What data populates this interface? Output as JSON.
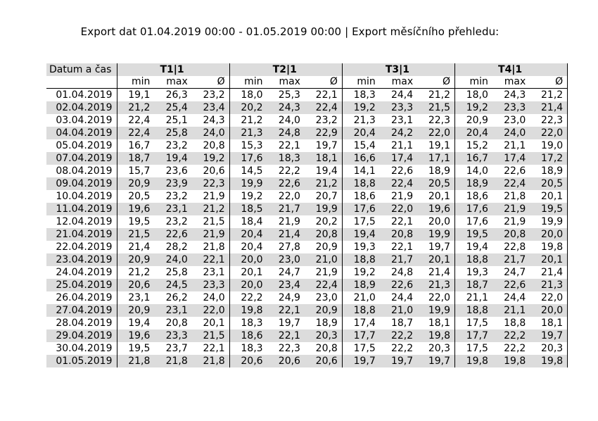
{
  "header": {
    "title": "Export dat 01.04.2019 00:00 - 01.05.2019 00:00 | Export měsíčního přehledu:"
  },
  "table": {
    "label": "Datum a čas",
    "groups": [
      "T1|1",
      "T2|1",
      "T3|1",
      "T4|1"
    ],
    "subheaders": [
      "min",
      "max",
      "Ø"
    ],
    "rows": [
      [
        "01.04.2019",
        "19,1",
        "26,3",
        "23,2",
        "18,0",
        "25,3",
        "22,1",
        "18,3",
        "24,4",
        "21,2",
        "18,0",
        "24,3",
        "21,2"
      ],
      [
        "02.04.2019",
        "21,2",
        "25,4",
        "23,4",
        "20,2",
        "24,3",
        "22,4",
        "19,2",
        "23,3",
        "21,5",
        "19,2",
        "23,3",
        "21,4"
      ],
      [
        "03.04.2019",
        "22,4",
        "25,1",
        "24,3",
        "21,2",
        "24,0",
        "23,2",
        "21,3",
        "23,1",
        "22,3",
        "20,9",
        "23,0",
        "22,3"
      ],
      [
        "04.04.2019",
        "22,4",
        "25,8",
        "24,0",
        "21,3",
        "24,8",
        "22,9",
        "20,4",
        "24,2",
        "22,0",
        "20,4",
        "24,0",
        "22,0"
      ],
      [
        "05.04.2019",
        "16,7",
        "23,2",
        "20,8",
        "15,3",
        "22,1",
        "19,7",
        "15,4",
        "21,1",
        "19,1",
        "15,2",
        "21,1",
        "19,0"
      ],
      [
        "07.04.2019",
        "18,7",
        "19,4",
        "19,2",
        "17,6",
        "18,3",
        "18,1",
        "16,6",
        "17,4",
        "17,1",
        "16,7",
        "17,4",
        "17,2"
      ],
      [
        "08.04.2019",
        "15,7",
        "23,6",
        "20,6",
        "14,5",
        "22,2",
        "19,4",
        "14,1",
        "22,6",
        "18,9",
        "14,0",
        "22,6",
        "18,9"
      ],
      [
        "09.04.2019",
        "20,9",
        "23,9",
        "22,3",
        "19,9",
        "22,6",
        "21,2",
        "18,8",
        "22,4",
        "20,5",
        "18,9",
        "22,4",
        "20,5"
      ],
      [
        "10.04.2019",
        "20,5",
        "23,2",
        "21,9",
        "19,2",
        "22,0",
        "20,7",
        "18,6",
        "21,9",
        "20,1",
        "18,6",
        "21,8",
        "20,1"
      ],
      [
        "11.04.2019",
        "19,6",
        "23,1",
        "21,2",
        "18,5",
        "21,7",
        "19,9",
        "17,6",
        "22,0",
        "19,6",
        "17,6",
        "21,9",
        "19,5"
      ],
      [
        "12.04.2019",
        "19,5",
        "23,2",
        "21,5",
        "18,4",
        "21,9",
        "20,2",
        "17,5",
        "22,1",
        "20,0",
        "17,6",
        "21,9",
        "19,9"
      ],
      [
        "21.04.2019",
        "21,5",
        "22,6",
        "21,9",
        "20,4",
        "21,4",
        "20,8",
        "19,4",
        "20,8",
        "19,9",
        "19,5",
        "20,8",
        "20,0"
      ],
      [
        "22.04.2019",
        "21,4",
        "28,2",
        "21,8",
        "20,4",
        "27,8",
        "20,9",
        "19,3",
        "22,1",
        "19,7",
        "19,4",
        "22,8",
        "19,8"
      ],
      [
        "23.04.2019",
        "20,9",
        "24,0",
        "22,1",
        "20,0",
        "23,0",
        "21,0",
        "18,8",
        "21,7",
        "20,1",
        "18,8",
        "21,7",
        "20,1"
      ],
      [
        "24.04.2019",
        "21,2",
        "25,8",
        "23,1",
        "20,1",
        "24,7",
        "21,9",
        "19,2",
        "24,8",
        "21,4",
        "19,3",
        "24,7",
        "21,4"
      ],
      [
        "25.04.2019",
        "20,6",
        "24,5",
        "23,3",
        "20,0",
        "23,4",
        "22,4",
        "18,9",
        "22,6",
        "21,3",
        "18,7",
        "22,6",
        "21,3"
      ],
      [
        "26.04.2019",
        "23,1",
        "26,2",
        "24,0",
        "22,2",
        "24,9",
        "23,0",
        "21,0",
        "24,4",
        "22,0",
        "21,1",
        "24,4",
        "22,0"
      ],
      [
        "27.04.2019",
        "20,9",
        "23,1",
        "22,0",
        "19,8",
        "22,1",
        "20,9",
        "18,8",
        "21,0",
        "19,9",
        "18,8",
        "21,1",
        "20,0"
      ],
      [
        "28.04.2019",
        "19,4",
        "20,8",
        "20,1",
        "18,3",
        "19,7",
        "18,9",
        "17,4",
        "18,7",
        "18,1",
        "17,5",
        "18,8",
        "18,1"
      ],
      [
        "29.04.2019",
        "19,6",
        "23,3",
        "21,5",
        "18,6",
        "22,1",
        "20,3",
        "17,7",
        "22,2",
        "19,8",
        "17,7",
        "22,2",
        "19,7"
      ],
      [
        "30.04.2019",
        "19,5",
        "23,7",
        "22,1",
        "18,3",
        "22,3",
        "20,8",
        "17,5",
        "22,2",
        "20,3",
        "17,5",
        "22,2",
        "20,3"
      ],
      [
        "01.05.2019",
        "21,8",
        "21,8",
        "21,8",
        "20,6",
        "20,6",
        "20,6",
        "19,7",
        "19,7",
        "19,7",
        "19,8",
        "19,8",
        "19,8"
      ]
    ]
  }
}
